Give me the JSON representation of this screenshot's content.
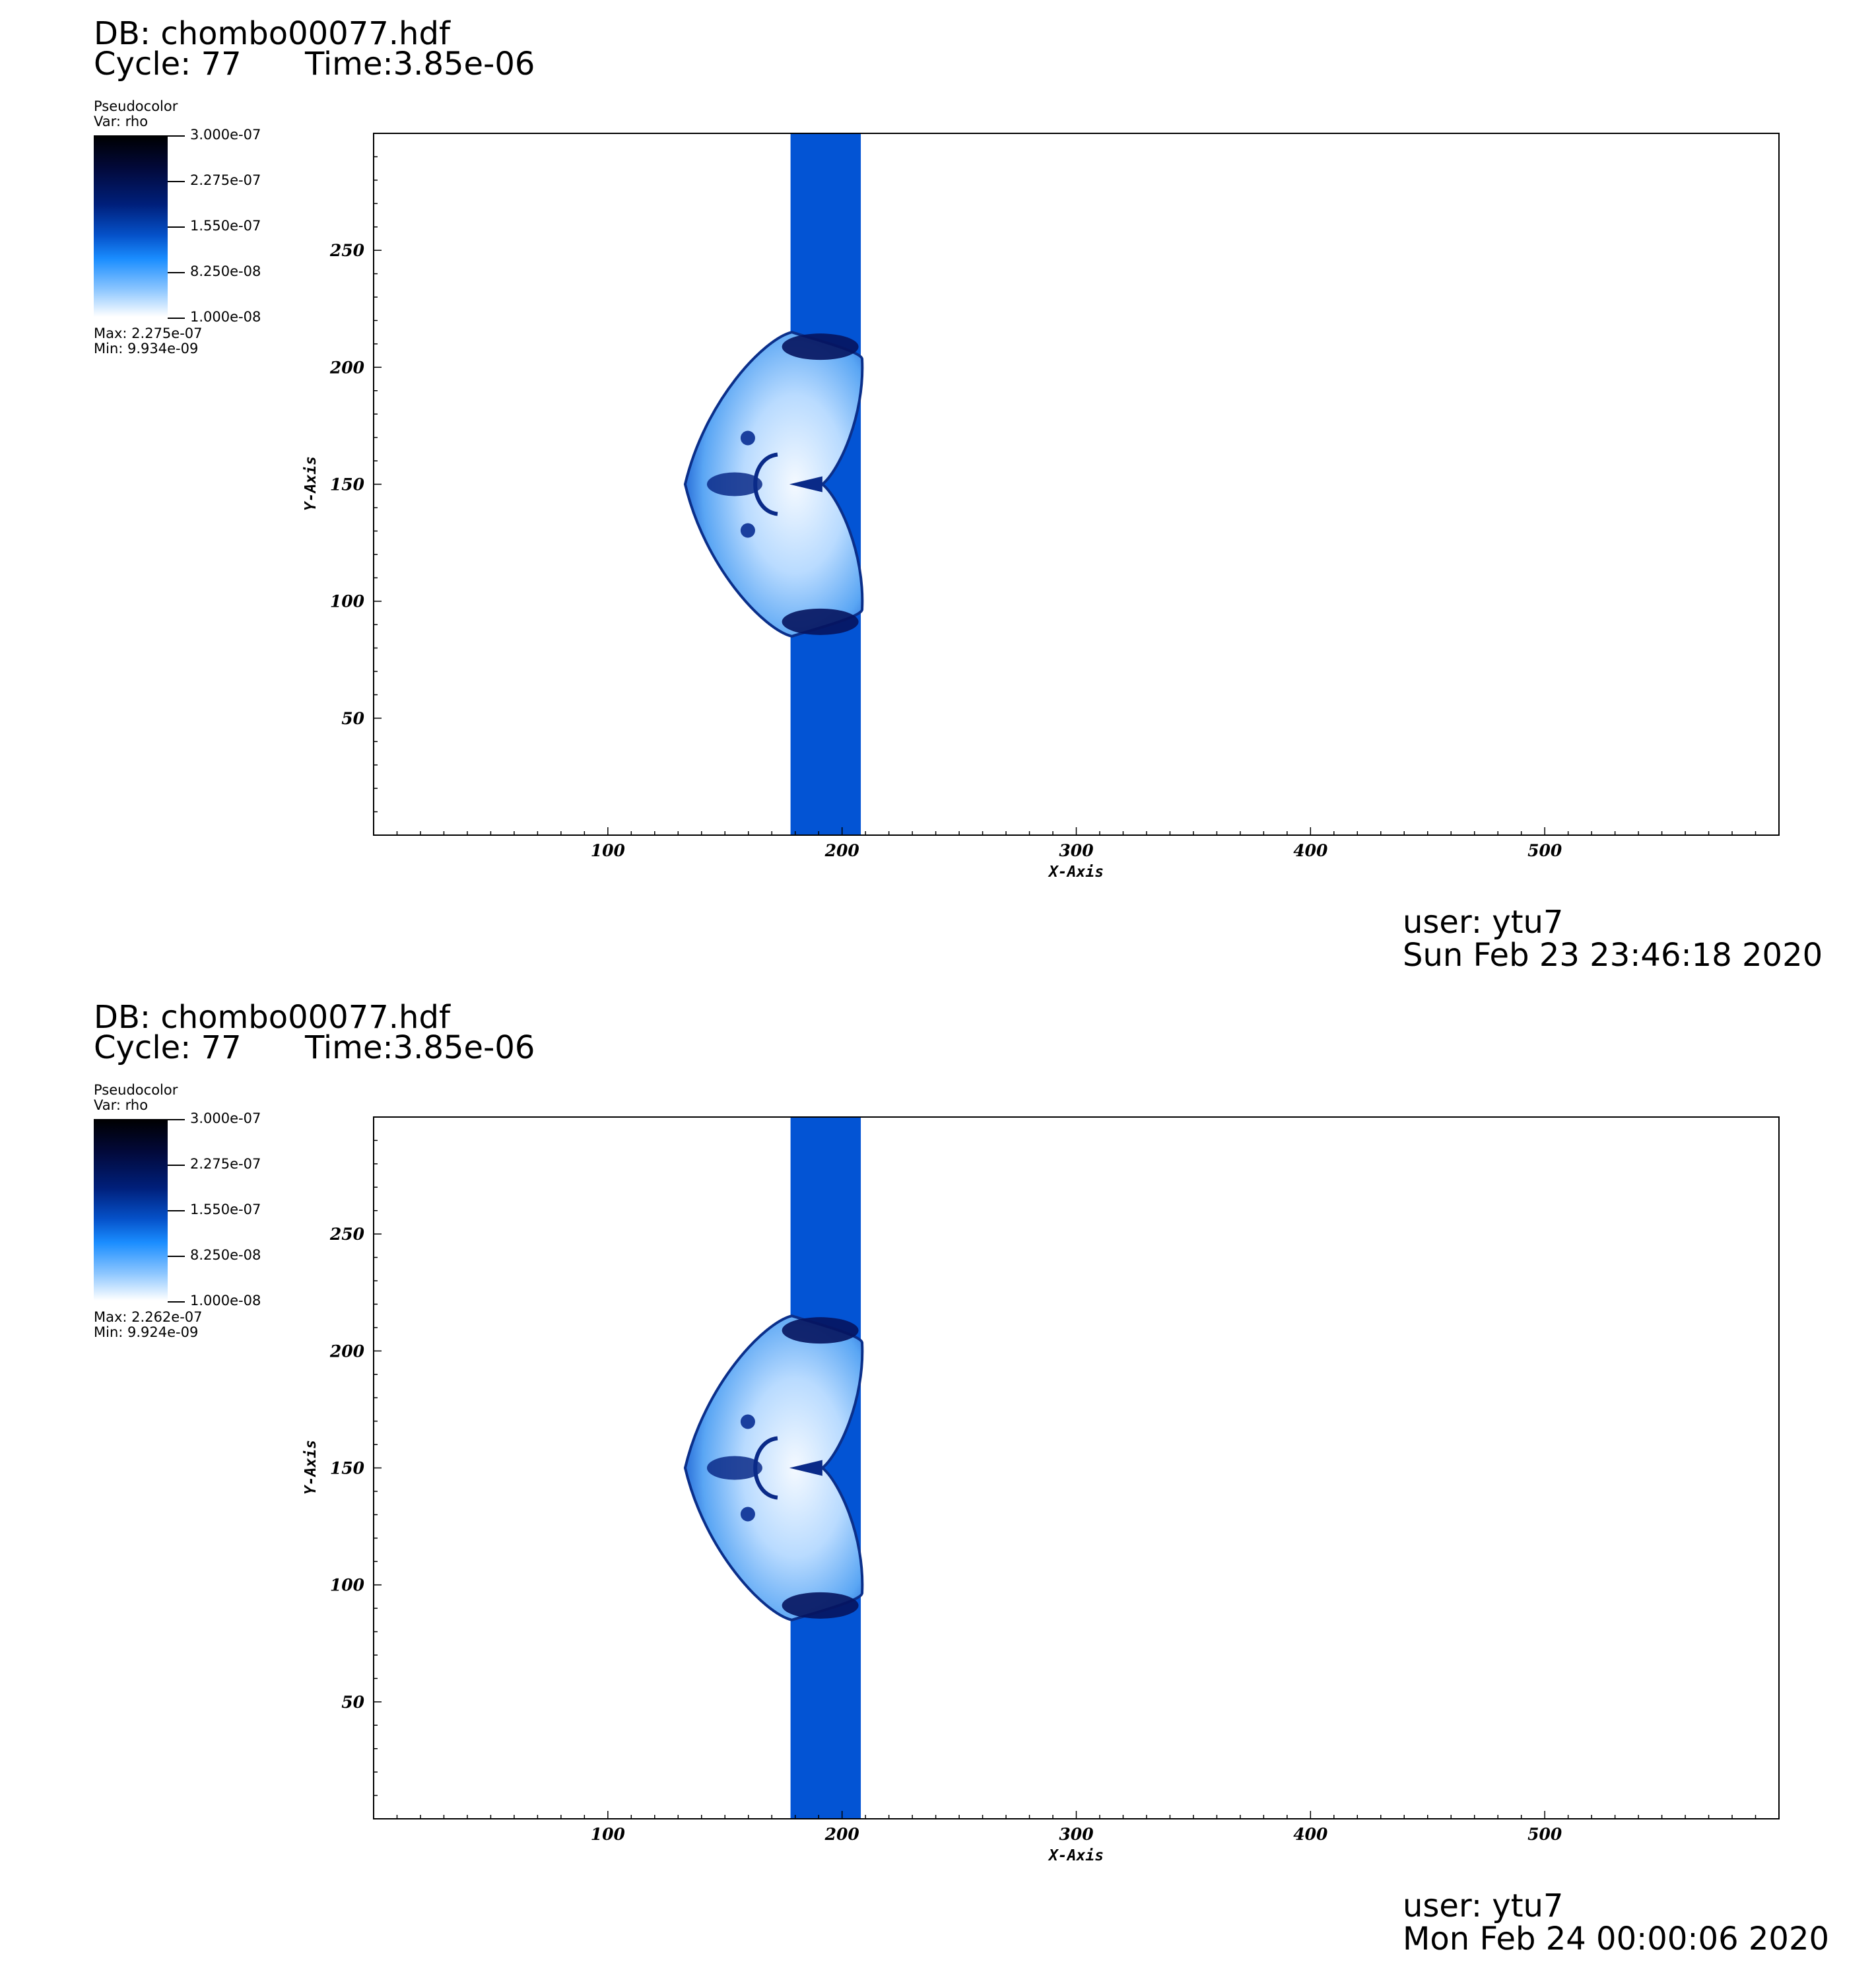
{
  "colors": {
    "background": "#ffffff",
    "band": "#0354d4",
    "frame": "#000000"
  },
  "panels": [
    {
      "db_label": "DB: chombo00077.hdf",
      "cycle_label": "Cycle: 77",
      "time_label": "Time:3.85e-06",
      "legend": {
        "plot_type": "Pseudocolor",
        "var_label": "Var: rho",
        "ticks": [
          "3.000e-07",
          "2.275e-07",
          "1.550e-07",
          "8.250e-08",
          "1.000e-08"
        ],
        "max_label": "Max:  2.275e-07",
        "min_label": "Min:  9.934e-09"
      },
      "user_label": "user: ytu7",
      "date_label": "Sun Feb 23 23:46:18 2020"
    },
    {
      "db_label": "DB: chombo00077.hdf",
      "cycle_label": "Cycle: 77",
      "time_label": "Time:3.85e-06",
      "legend": {
        "plot_type": "Pseudocolor",
        "var_label": "Var: rho",
        "ticks": [
          "3.000e-07",
          "2.275e-07",
          "1.550e-07",
          "8.250e-08",
          "1.000e-08"
        ],
        "max_label": "Max:  2.262e-07",
        "min_label": "Min:  9.924e-09"
      },
      "user_label": "user: ytu7",
      "date_label": "Mon Feb 24 00:00:06 2020"
    }
  ],
  "chart_data": [
    {
      "type": "heatmap",
      "variable": "rho",
      "xlabel": "X-Axis",
      "ylabel": "Y-Axis",
      "xlim": [
        0,
        600
      ],
      "ylim": [
        0,
        300
      ],
      "xticks": [
        100,
        200,
        300,
        400,
        500
      ],
      "yticks": [
        50,
        100,
        150,
        200,
        250
      ],
      "colorbar_range": [
        1e-08,
        3e-07
      ],
      "data_max": 2.275e-07,
      "data_min": 9.934e-09,
      "features": {
        "band_x": [
          178,
          208
        ],
        "bubble_y": [
          85,
          215
        ],
        "bubble_left_x": 133,
        "bubble_center_y": 150
      }
    },
    {
      "type": "heatmap",
      "variable": "rho",
      "xlabel": "X-Axis",
      "ylabel": "Y-Axis",
      "xlim": [
        0,
        600
      ],
      "ylim": [
        0,
        300
      ],
      "xticks": [
        100,
        200,
        300,
        400,
        500
      ],
      "yticks": [
        50,
        100,
        150,
        200,
        250
      ],
      "colorbar_range": [
        1e-08,
        3e-07
      ],
      "data_max": 2.262e-07,
      "data_min": 9.924e-09,
      "features": {
        "band_x": [
          178,
          208
        ],
        "bubble_y": [
          85,
          215
        ],
        "bubble_left_x": 133,
        "bubble_center_y": 150
      }
    }
  ]
}
